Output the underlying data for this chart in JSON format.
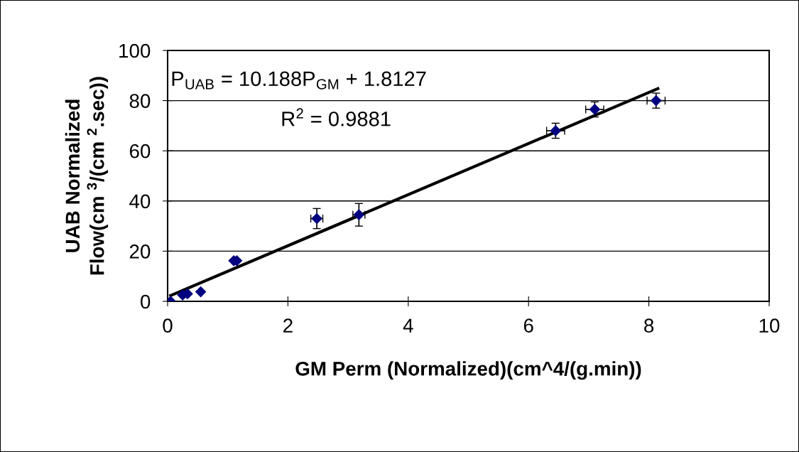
{
  "chart_data": {
    "type": "scatter",
    "xlabel": "GM Perm (Normalized)(cm^4/(g.min))",
    "ylabel": "UAB Normalized\nFlow(cm $^{3}$/(cm $^{2}$.sec))",
    "annotations": [
      "P$_{UAB}$ = 10.188P$_{GM}$ + 1.8127",
      "R$^{2}$ = 0.9881"
    ],
    "series": [
      {
        "color": "#000080",
        "marker": "diamond",
        "x": [
          0.05,
          0.25,
          0.33,
          0.55,
          1.1,
          1.15,
          2.48,
          3.18,
          6.45,
          7.1,
          8.12
        ],
        "values": [
          0,
          2.5,
          3,
          3.8,
          16.2,
          16.2,
          33,
          34.5,
          68,
          76.5,
          80
        ],
        "errors": [
          null,
          null,
          null,
          null,
          null,
          null,
          4,
          4.5,
          3,
          3,
          3
        ],
        "xerrors": [
          null,
          null,
          null,
          null,
          null,
          null,
          0.1,
          0.1,
          0.15,
          0.15,
          0.15
        ]
      },
      {
        "type": "line",
        "color": "#000000",
        "marker": "none",
        "x": [
          0.05,
          8.15
        ],
        "values": [
          2.3,
          84.8
        ]
      }
    ],
    "xlim": [
      0,
      10
    ],
    "xticks": [
      0,
      2,
      4,
      6,
      8,
      10
    ],
    "ylim": [
      0,
      100
    ],
    "yticks": [
      0,
      20,
      40,
      60,
      80,
      100
    ],
    "grid": "y",
    "legend": false
  }
}
